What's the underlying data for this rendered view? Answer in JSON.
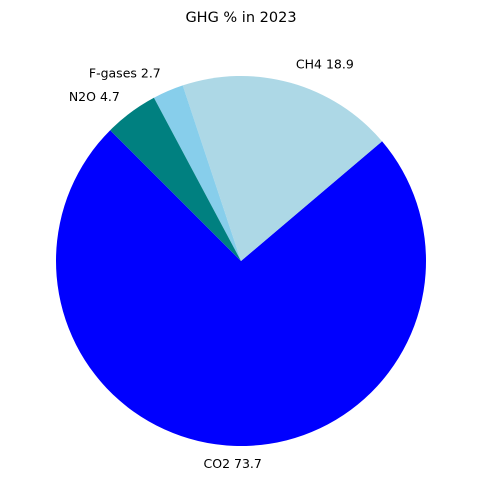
{
  "chart_data": {
    "type": "pie",
    "title": "GHG % in 2023",
    "slices": [
      {
        "label": "CO2",
        "value": 73.7,
        "color": "#0000ff"
      },
      {
        "label": "CH4",
        "value": 18.9,
        "color": "#add8e6"
      },
      {
        "label": "F-gases",
        "value": 2.7,
        "color": "#87ceeb"
      },
      {
        "label": "N2O",
        "value": 4.7,
        "color": "#008080"
      }
    ],
    "start_angle_deg": 135,
    "direction": "counterclockwise",
    "legend": "none"
  }
}
